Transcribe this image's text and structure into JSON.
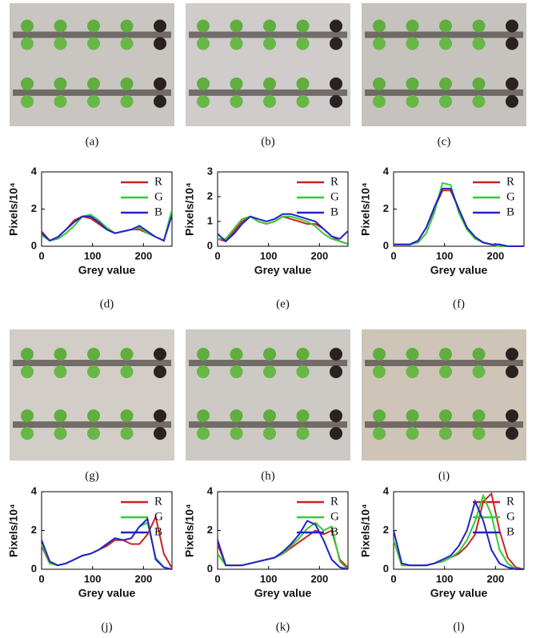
{
  "image_captions": [
    "(a)",
    "(b)",
    "(c)",
    "(g)",
    "(h)",
    "(i)"
  ],
  "chart_data": [
    {
      "type": "line",
      "caption": "(d)",
      "xlabel": "Grey value",
      "ylabel": "Pixels/10⁴",
      "xlim": [
        0,
        256
      ],
      "xticks": [
        0,
        100,
        200
      ],
      "ylim": [
        0,
        4
      ],
      "yticks": [
        0,
        2,
        4
      ],
      "x": [
        0,
        16,
        32,
        48,
        64,
        80,
        96,
        112,
        128,
        144,
        160,
        176,
        192,
        208,
        224,
        240,
        255
      ],
      "series": [
        {
          "name": "R",
          "color": "#cc2222",
          "values": [
            0.8,
            0.3,
            0.5,
            0.9,
            1.4,
            1.6,
            1.5,
            1.2,
            0.9,
            0.7,
            0.8,
            0.9,
            0.9,
            0.7,
            0.5,
            0.3,
            1.8
          ]
        },
        {
          "name": "G",
          "color": "#33cc33",
          "values": [
            0.6,
            0.3,
            0.4,
            0.7,
            1.1,
            1.6,
            1.7,
            1.4,
            1.0,
            0.7,
            0.8,
            0.9,
            1.0,
            0.7,
            0.5,
            0.3,
            1.9
          ]
        },
        {
          "name": "B",
          "color": "#2222cc",
          "values": [
            0.7,
            0.3,
            0.5,
            0.9,
            1.3,
            1.6,
            1.6,
            1.3,
            0.9,
            0.7,
            0.8,
            0.9,
            1.1,
            0.8,
            0.5,
            0.3,
            1.6
          ]
        }
      ]
    },
    {
      "type": "line",
      "caption": "(e)",
      "xlabel": "Grey value",
      "ylabel": "Pixels/10⁴",
      "xlim": [
        0,
        256
      ],
      "xticks": [
        0,
        100,
        200
      ],
      "ylim": [
        0,
        3
      ],
      "yticks": [
        0,
        1,
        2,
        3
      ],
      "x": [
        0,
        16,
        32,
        48,
        64,
        80,
        96,
        112,
        128,
        144,
        160,
        176,
        192,
        208,
        224,
        240,
        255
      ],
      "series": [
        {
          "name": "R",
          "color": "#cc2222",
          "values": [
            0.3,
            0.2,
            0.6,
            1.0,
            1.2,
            1.0,
            0.9,
            1.0,
            1.2,
            1.1,
            1.0,
            0.9,
            0.9,
            0.7,
            0.4,
            0.2,
            0.1
          ]
        },
        {
          "name": "G",
          "color": "#33cc33",
          "values": [
            0.3,
            0.3,
            0.7,
            1.1,
            1.2,
            1.0,
            0.9,
            1.0,
            1.2,
            1.2,
            1.1,
            1.0,
            0.8,
            0.5,
            0.3,
            0.2,
            0.1
          ]
        },
        {
          "name": "B",
          "color": "#2222cc",
          "values": [
            0.5,
            0.2,
            0.5,
            0.9,
            1.2,
            1.1,
            1.0,
            1.1,
            1.3,
            1.3,
            1.2,
            1.1,
            1.0,
            0.7,
            0.4,
            0.3,
            0.6
          ]
        }
      ]
    },
    {
      "type": "line",
      "caption": "(f)",
      "xlabel": "Grey value",
      "ylabel": "Pixels/10⁴",
      "xlim": [
        0,
        256
      ],
      "xticks": [
        0,
        100,
        200
      ],
      "ylim": [
        0,
        4
      ],
      "yticks": [
        0,
        2,
        4
      ],
      "x": [
        0,
        16,
        32,
        48,
        64,
        80,
        96,
        112,
        128,
        144,
        160,
        176,
        192,
        208,
        224,
        240,
        255
      ],
      "series": [
        {
          "name": "R",
          "color": "#cc2222",
          "values": [
            0.1,
            0.1,
            0.1,
            0.3,
            1.0,
            2.0,
            3.0,
            3.0,
            2.0,
            1.0,
            0.5,
            0.2,
            0.1,
            0.1,
            0.0,
            0.0,
            0.0
          ]
        },
        {
          "name": "G",
          "color": "#33cc33",
          "values": [
            0.1,
            0.1,
            0.1,
            0.2,
            0.7,
            1.8,
            3.4,
            3.3,
            1.8,
            0.9,
            0.4,
            0.2,
            0.1,
            0.0,
            0.0,
            0.0,
            0.0
          ]
        },
        {
          "name": "B",
          "color": "#2222cc",
          "values": [
            0.1,
            0.1,
            0.1,
            0.3,
            1.0,
            2.1,
            3.1,
            3.1,
            2.0,
            1.0,
            0.5,
            0.2,
            0.1,
            0.1,
            0.0,
            0.0,
            0.0
          ]
        }
      ]
    },
    {
      "type": "line",
      "caption": "(j)",
      "xlabel": "Grey value",
      "ylabel": "Pixels/10⁴",
      "xlim": [
        0,
        256
      ],
      "xticks": [
        0,
        100,
        200
      ],
      "ylim": [
        0,
        4
      ],
      "yticks": [
        0,
        2,
        4
      ],
      "x": [
        0,
        16,
        32,
        48,
        64,
        80,
        96,
        112,
        128,
        144,
        160,
        176,
        192,
        208,
        224,
        240,
        255
      ],
      "series": [
        {
          "name": "R",
          "color": "#cc2222",
          "values": [
            1.2,
            0.3,
            0.2,
            0.3,
            0.5,
            0.7,
            0.8,
            1.0,
            1.2,
            1.5,
            1.5,
            1.3,
            1.3,
            1.8,
            2.7,
            0.8,
            0.1
          ]
        },
        {
          "name": "G",
          "color": "#33cc33",
          "values": [
            1.3,
            0.3,
            0.2,
            0.3,
            0.5,
            0.7,
            0.8,
            1.0,
            1.3,
            1.6,
            1.5,
            1.6,
            2.2,
            2.4,
            0.6,
            0.1,
            0.0
          ]
        },
        {
          "name": "B",
          "color": "#2222cc",
          "values": [
            1.5,
            0.4,
            0.2,
            0.3,
            0.5,
            0.7,
            0.8,
            1.0,
            1.3,
            1.6,
            1.5,
            1.6,
            2.2,
            2.6,
            0.5,
            0.1,
            0.0
          ]
        }
      ]
    },
    {
      "type": "line",
      "caption": "(k)",
      "xlabel": "Grey value",
      "ylabel": "Pixels/10⁴",
      "xlim": [
        0,
        256
      ],
      "xticks": [
        0,
        100,
        200
      ],
      "ylim": [
        0,
        4
      ],
      "yticks": [
        0,
        2,
        4
      ],
      "x": [
        0,
        16,
        32,
        48,
        64,
        80,
        96,
        112,
        128,
        144,
        160,
        176,
        192,
        208,
        224,
        240,
        255
      ],
      "series": [
        {
          "name": "R",
          "color": "#cc2222",
          "values": [
            1.3,
            0.2,
            0.2,
            0.2,
            0.3,
            0.4,
            0.5,
            0.6,
            0.8,
            1.1,
            1.4,
            1.7,
            2.0,
            1.8,
            2.0,
            0.5,
            0.1
          ]
        },
        {
          "name": "G",
          "color": "#33cc33",
          "values": [
            0.8,
            0.2,
            0.2,
            0.2,
            0.3,
            0.4,
            0.5,
            0.6,
            0.8,
            1.2,
            1.6,
            2.1,
            2.4,
            2.0,
            2.2,
            0.4,
            0.0
          ]
        },
        {
          "name": "B",
          "color": "#2222cc",
          "values": [
            1.5,
            0.2,
            0.2,
            0.2,
            0.3,
            0.4,
            0.5,
            0.6,
            0.9,
            1.3,
            1.8,
            2.5,
            2.3,
            1.5,
            0.5,
            0.1,
            0.0
          ]
        }
      ]
    },
    {
      "type": "line",
      "caption": "(l)",
      "xlabel": "Grey value",
      "ylabel": "Pixels/10⁴",
      "xlim": [
        0,
        256
      ],
      "xticks": [
        0,
        100,
        200
      ],
      "ylim": [
        0,
        4
      ],
      "yticks": [
        0,
        2,
        4
      ],
      "x": [
        0,
        16,
        32,
        48,
        64,
        80,
        96,
        112,
        128,
        144,
        160,
        176,
        192,
        208,
        224,
        240,
        255
      ],
      "series": [
        {
          "name": "R",
          "color": "#cc2222",
          "values": [
            1.5,
            0.2,
            0.2,
            0.2,
            0.2,
            0.3,
            0.4,
            0.6,
            0.8,
            1.2,
            1.8,
            3.5,
            3.9,
            2.0,
            0.6,
            0.1,
            0.0
          ]
        },
        {
          "name": "G",
          "color": "#33cc33",
          "values": [
            1.5,
            0.2,
            0.2,
            0.2,
            0.2,
            0.3,
            0.4,
            0.6,
            0.9,
            1.5,
            2.5,
            3.8,
            2.8,
            1.0,
            0.3,
            0.0,
            0.0
          ]
        },
        {
          "name": "B",
          "color": "#2222cc",
          "values": [
            2.0,
            0.3,
            0.2,
            0.2,
            0.2,
            0.3,
            0.5,
            0.7,
            1.2,
            2.0,
            3.5,
            2.5,
            1.0,
            0.3,
            0.1,
            0.0,
            0.0
          ]
        }
      ]
    }
  ]
}
